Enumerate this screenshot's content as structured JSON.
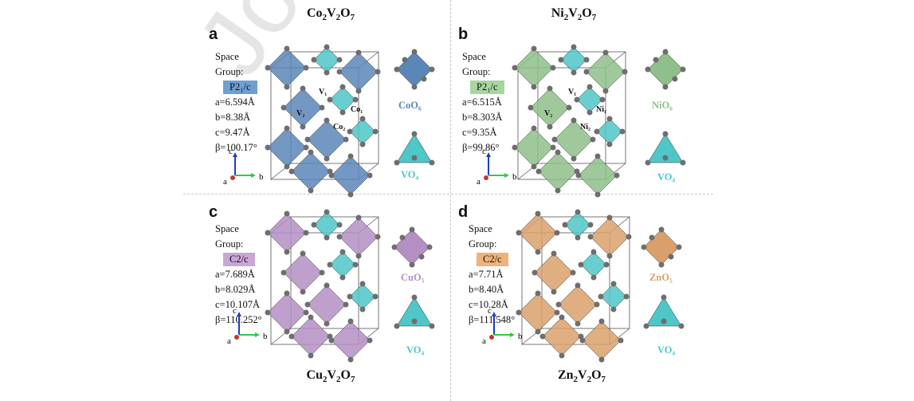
{
  "watermark": "Journal Pre-proof",
  "panels": [
    {
      "letter": "a",
      "formula_html": "Co<sub>2</sub>V<sub>2</sub>O<sub>7</sub>",
      "space_group_label": "Space Group:",
      "space_group": "P2₁/c",
      "a": "a=6.594Å",
      "b": "b=8.38Å",
      "c": "c=9.47Å",
      "beta": "β=100.17°",
      "poly_metal": "CoO₆",
      "poly_v": "VO₄",
      "site_labels": [
        "V₁",
        "V₂",
        "Co₁",
        "Co₂"
      ],
      "color": "#5b86b8",
      "sg_bg": "#6f9fd0"
    },
    {
      "letter": "b",
      "formula_html": "Ni<sub>2</sub>V<sub>2</sub>O<sub>7</sub>",
      "space_group_label": "Space Group:",
      "space_group": "P2₁/c",
      "a": "a=6.515Å",
      "b": "b=8.303Å",
      "c": "c=9.35Å",
      "beta": "β=99.86°",
      "poly_metal": "NiO₆",
      "poly_v": "VO₄",
      "site_labels": [
        "V₁",
        "V₂",
        "Ni₁",
        "Ni₂"
      ],
      "color": "#8fbf8a",
      "sg_bg": "#a8d5a0"
    },
    {
      "letter": "c",
      "formula_html": "Cu<sub>2</sub>V<sub>2</sub>O<sub>7</sub>",
      "space_group_label": "Space Group:",
      "space_group": "C2/c",
      "a": "a=7.689Å",
      "b": "b=8.029Å",
      "c": "c=10.107Å",
      "beta": "β=110.252°",
      "poly_metal": "CuO₅",
      "poly_v": "VO₄",
      "site_labels": [],
      "color": "#b48fc4",
      "sg_bg": "#c9a6d6"
    },
    {
      "letter": "d",
      "formula_html": "Zn<sub>2</sub>V<sub>2</sub>O<sub>7</sub>",
      "space_group_label": "Space Group:",
      "space_group": "C2/c",
      "a": "a=7.71Å",
      "b": "b=8.40Å",
      "c": "c=10.28Å",
      "beta": "β=111.548°",
      "poly_metal": "ZnO₅",
      "poly_v": "VO₄",
      "site_labels": [],
      "color": "#d9a06b",
      "sg_bg": "#f0b27a"
    }
  ],
  "axes": {
    "a": "a",
    "b": "b",
    "c": "c"
  },
  "colors": {
    "vo4": "#4fc6c8",
    "oxygen": "#6e6e6e",
    "axis_a": "#c0392b",
    "axis_b": "#2ecc40",
    "axis_c": "#1f3fbf"
  }
}
